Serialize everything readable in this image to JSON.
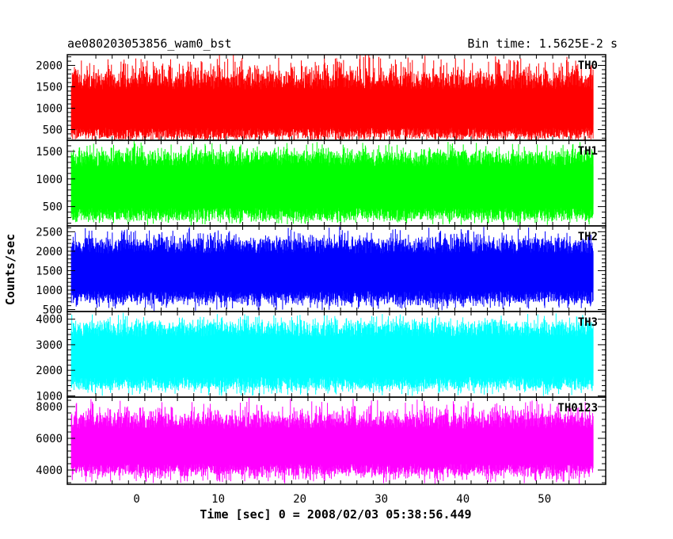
{
  "title_left": "ae080203053856_wam0_bst",
  "title_right": "Bin time: 1.5625E-2 s",
  "chart_data": {
    "type": "line",
    "xlabel": "Time [sec] 0 = 2008/02/03 05:38:56.449",
    "ylabel": "Counts/sec",
    "xlim": [
      -8.5,
      57.5
    ],
    "x_start": -8.0,
    "x_end": 56.0,
    "x_ticks": [
      "0",
      "10",
      "20",
      "30",
      "40",
      "50"
    ],
    "bin_time": 0.015625,
    "grid": false,
    "panels": [
      {
        "name": "TH0",
        "color": "#ff0000",
        "ylim": [
          250,
          2250
        ],
        "yticks": [
          "500",
          "1000",
          "1500",
          "2000"
        ],
        "mean": 1000,
        "typical_low": 300,
        "typical_high": 1800,
        "min": 150,
        "max": 2300
      },
      {
        "name": "TH1",
        "color": "#00ff00",
        "ylim": [
          150,
          1700
        ],
        "yticks": [
          "500",
          "1000",
          "1500"
        ],
        "mean": 900,
        "typical_low": 250,
        "typical_high": 1500,
        "min": 150,
        "max": 1700
      },
      {
        "name": "TH2",
        "color": "#0000ff",
        "ylim": [
          450,
          2650
        ],
        "yticks": [
          "500",
          "1000",
          "1500",
          "2000",
          "2500"
        ],
        "mean": 1500,
        "typical_low": 700,
        "typical_high": 2300,
        "min": 450,
        "max": 2650
      },
      {
        "name": "TH3",
        "color": "#00ffff",
        "ylim": [
          950,
          4300
        ],
        "yticks": [
          "1000",
          "2000",
          "3000",
          "4000"
        ],
        "mean": 2600,
        "typical_low": 1300,
        "typical_high": 3900,
        "min": 950,
        "max": 4300
      },
      {
        "name": "TH0123",
        "color": "#ff00ff",
        "ylim": [
          3100,
          8600
        ],
        "yticks": [
          "4000",
          "6000",
          "8000"
        ],
        "mean": 5500,
        "typical_low": 3800,
        "typical_high": 7500,
        "min": 3100,
        "max": 8600
      }
    ]
  }
}
